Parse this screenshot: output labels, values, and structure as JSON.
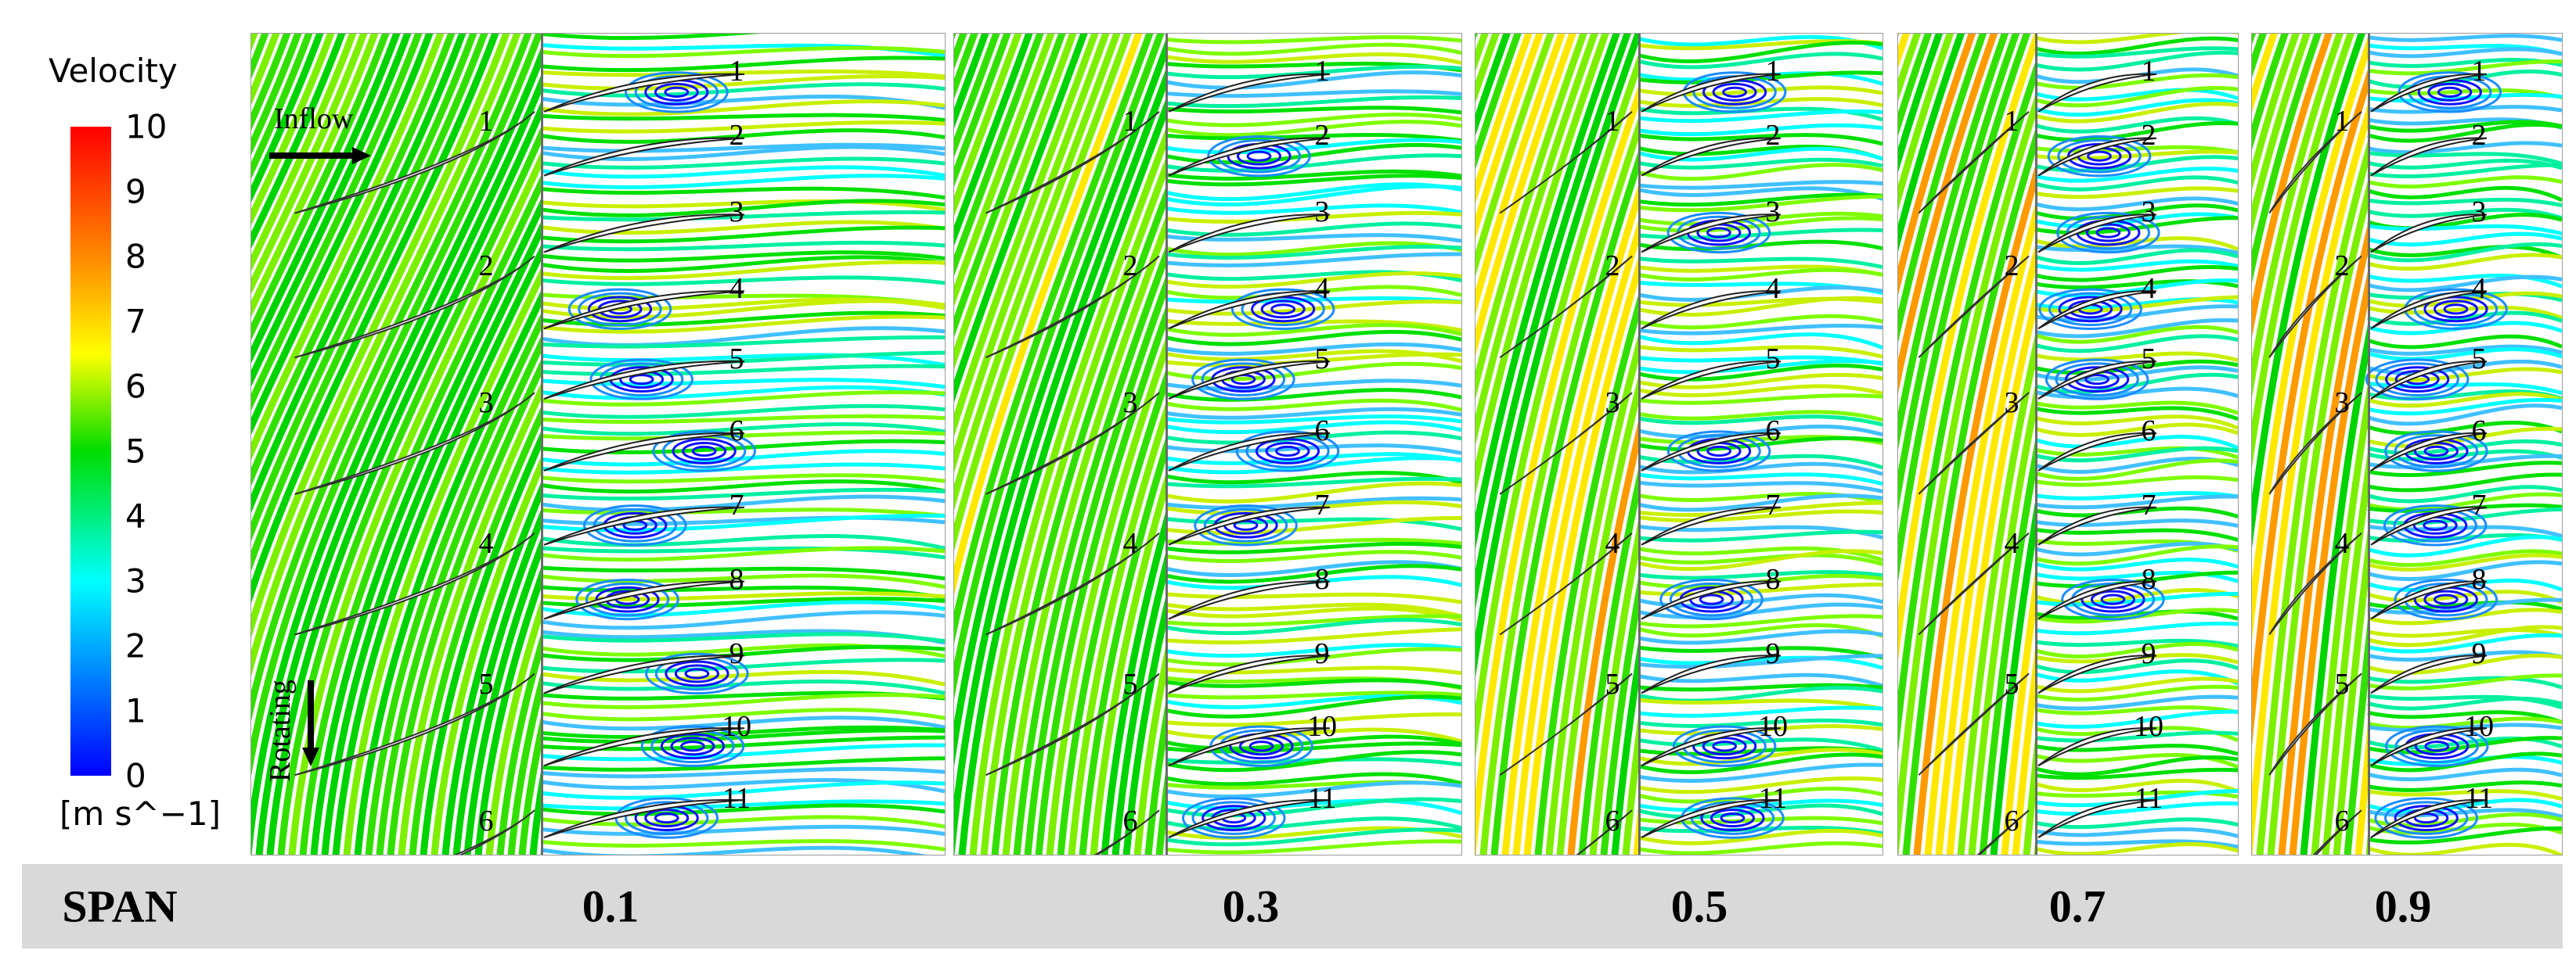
{
  "legend": {
    "title": "Velocity",
    "unit": "[m s^−1]",
    "ticks": [
      "10",
      "9",
      "8",
      "7",
      "6",
      "5",
      "4",
      "3",
      "2",
      "1",
      "0"
    ],
    "colors": [
      "#ff0000",
      "#ff8800",
      "#ffff00",
      "#00dd00",
      "#00ffff",
      "#0000ff"
    ]
  },
  "annotations": {
    "inflow": "Inflow",
    "rotating": "Rotating"
  },
  "span_bar": {
    "label": "SPAN",
    "values": [
      "0.1",
      "0.3",
      "0.5",
      "0.7",
      "0.9"
    ]
  },
  "panels": [
    {
      "span": "0.1",
      "rotor_numbers": [
        "1",
        "2",
        "3",
        "4",
        "5",
        "6"
      ],
      "stator_numbers": [
        "1",
        "2",
        "3",
        "4",
        "5",
        "6",
        "7",
        "8",
        "9",
        "10",
        "11"
      ]
    },
    {
      "span": "0.3",
      "rotor_numbers": [
        "1",
        "2",
        "3",
        "4",
        "5",
        "6"
      ],
      "stator_numbers": [
        "1",
        "2",
        "3",
        "4",
        "5",
        "6",
        "7",
        "8",
        "9",
        "10",
        "11"
      ]
    },
    {
      "span": "0.5",
      "rotor_numbers": [
        "1",
        "2",
        "3",
        "4",
        "5",
        "6"
      ],
      "stator_numbers": [
        "1",
        "2",
        "3",
        "4",
        "5",
        "6",
        "7",
        "8",
        "9",
        "10",
        "11"
      ]
    },
    {
      "span": "0.7",
      "rotor_numbers": [
        "1",
        "2",
        "3",
        "4",
        "5",
        "6"
      ],
      "stator_numbers": [
        "1",
        "2",
        "3",
        "4",
        "5",
        "6",
        "7",
        "8",
        "9",
        "10",
        "11"
      ]
    },
    {
      "span": "0.9",
      "rotor_numbers": [
        "1",
        "2",
        "3",
        "4",
        "5",
        "6"
      ],
      "stator_numbers": [
        "1",
        "2",
        "3",
        "4",
        "5",
        "6",
        "7",
        "8",
        "9",
        "10",
        "11"
      ]
    }
  ]
}
